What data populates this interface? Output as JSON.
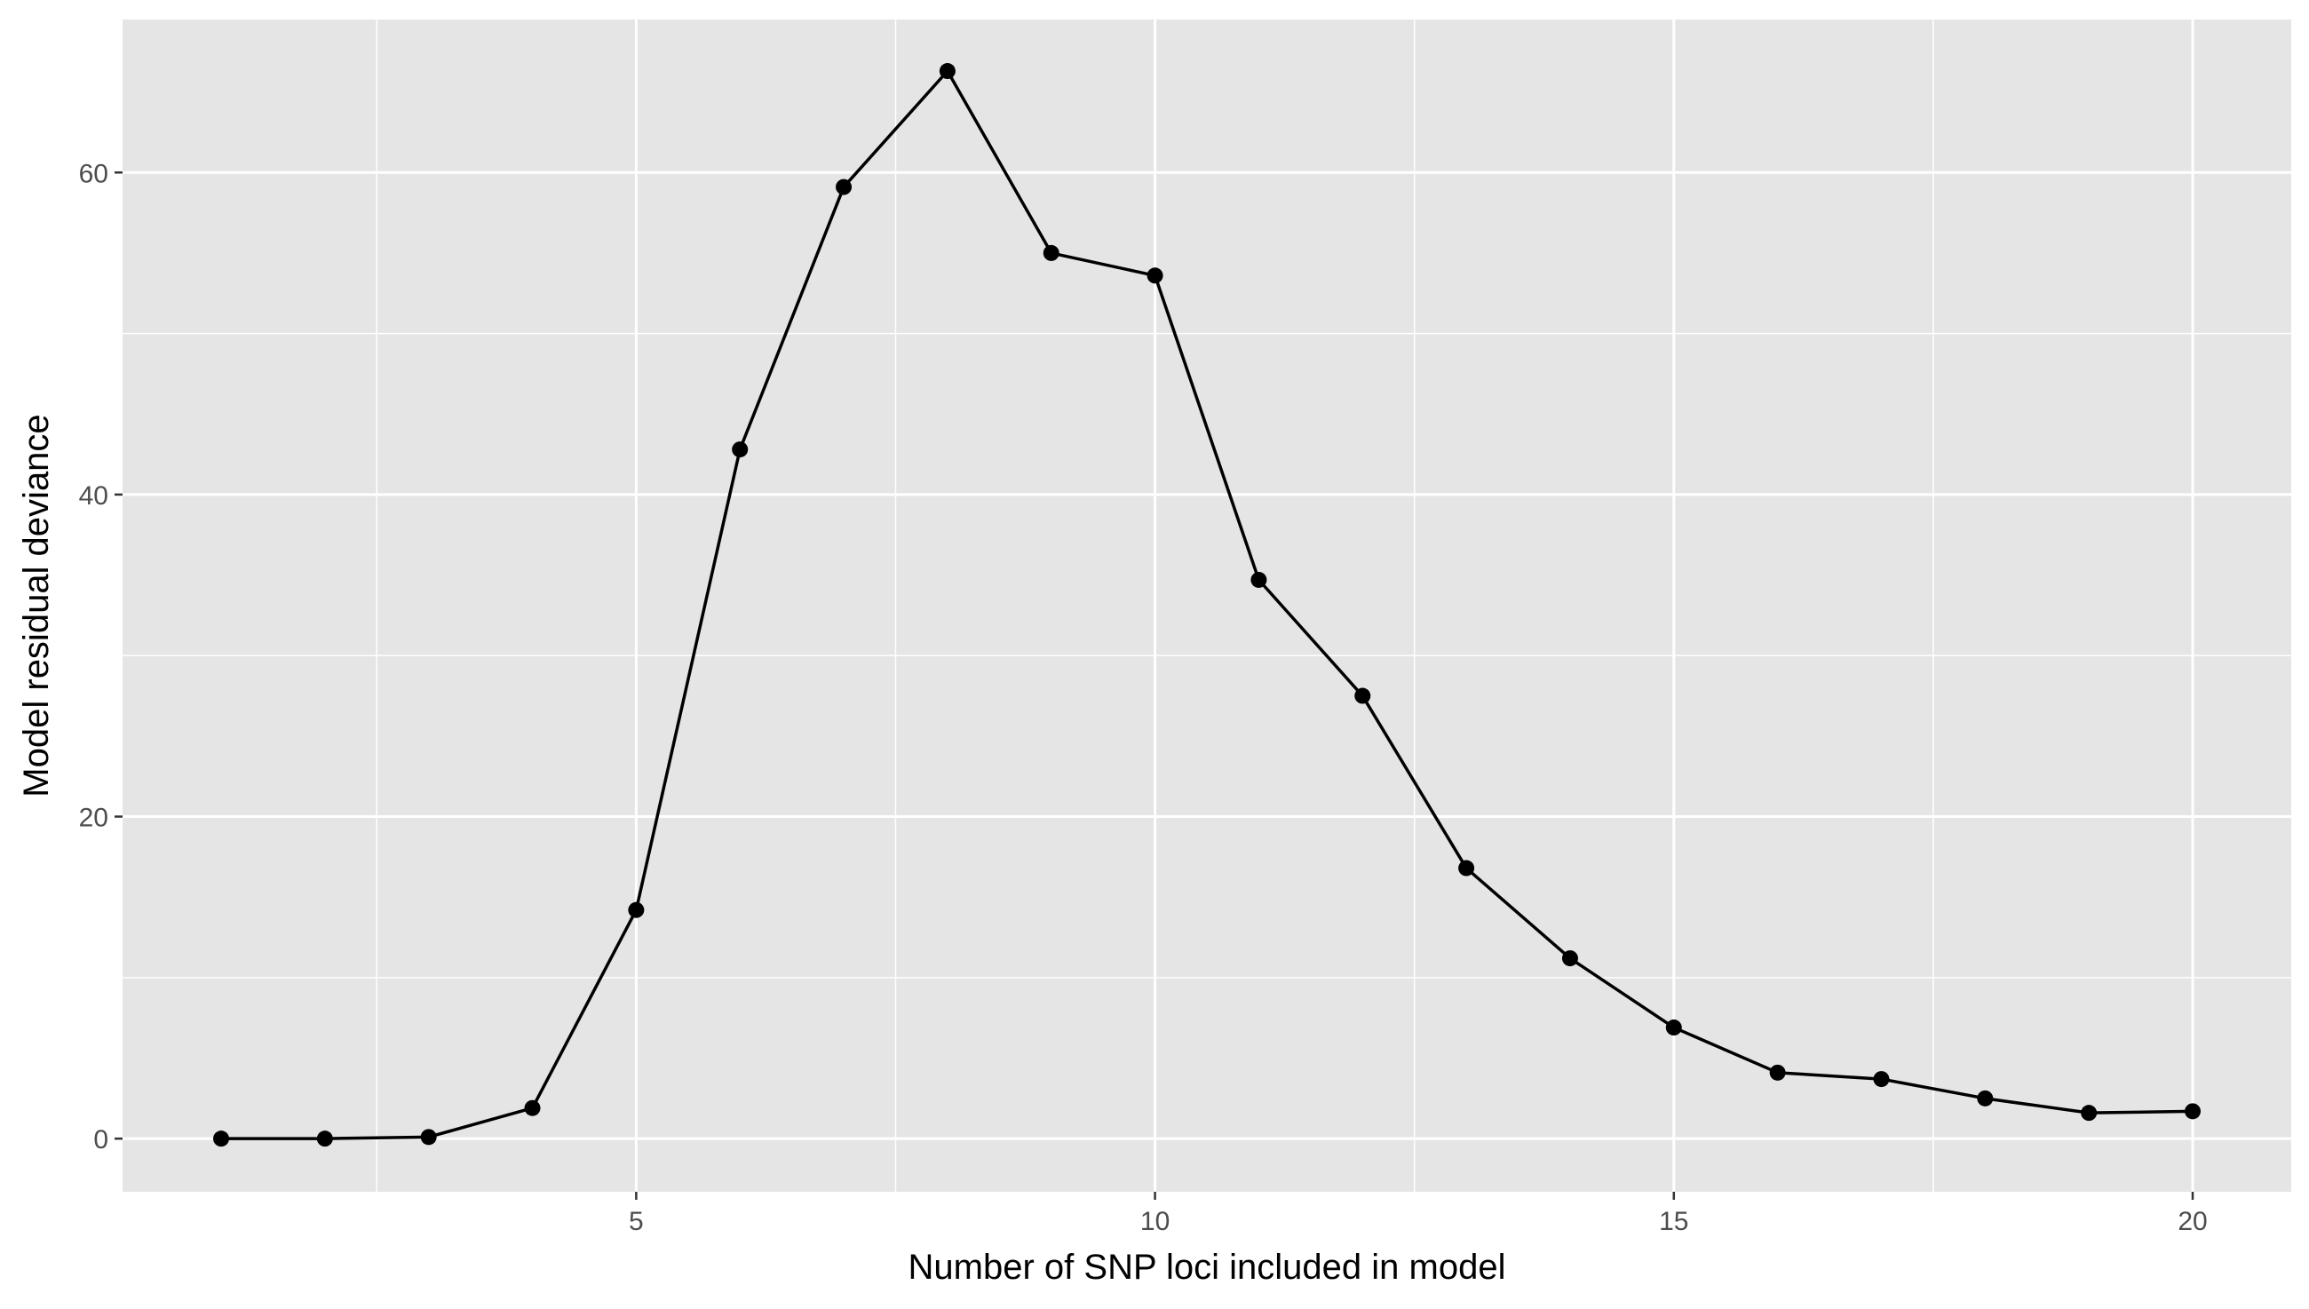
{
  "chart_data": {
    "type": "line",
    "title": "",
    "xlabel": "Number of SNP loci included in model",
    "ylabel": "Model residual deviance",
    "xlim": [
      0.05,
      20.95
    ],
    "ylim": [
      -3.3,
      69.5
    ],
    "x_ticks": [
      5,
      10,
      15,
      20
    ],
    "x_tick_labels": [
      "5",
      "10",
      "15",
      "20"
    ],
    "y_ticks": [
      0,
      20,
      40,
      60
    ],
    "y_tick_labels": [
      "0",
      "20",
      "40",
      "60"
    ],
    "grid": true,
    "legend": "none",
    "series": [
      {
        "x": [
          1,
          2,
          3,
          4,
          5,
          6,
          7,
          8,
          9,
          10,
          11,
          12,
          13,
          14,
          15,
          16,
          17,
          18,
          19,
          20
        ],
        "y": [
          0.0,
          0.0,
          0.1,
          1.9,
          14.2,
          42.8,
          59.1,
          66.3,
          55.0,
          53.6,
          34.7,
          27.5,
          16.8,
          11.2,
          6.9,
          4.1,
          3.7,
          2.5,
          1.6,
          1.7
        ]
      }
    ],
    "colors": {
      "panel": "#e5e5e5",
      "grid": "#ffffff",
      "line": "#000000",
      "tick_text": "#4d4d4d"
    }
  }
}
